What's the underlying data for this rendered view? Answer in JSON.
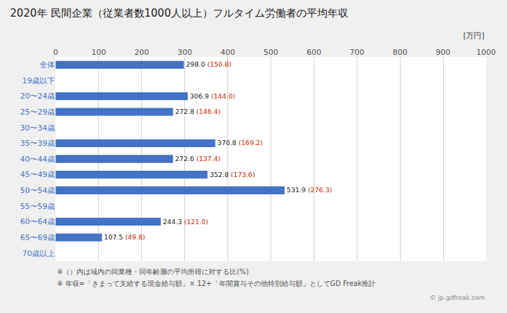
{
  "chart_data": {
    "type": "bar",
    "orientation": "horizontal",
    "title": "2020年 民間企業（従業者数1000人以上）フルタイム労働者の平均年収",
    "xlabel": "[万円]",
    "categories": [
      "全体",
      "19歳以下",
      "20〜24歳",
      "25〜29歳",
      "30〜34歳",
      "35〜39歳",
      "40〜44歳",
      "45〜49歳",
      "50〜54歳",
      "55〜59歳",
      "60〜64歳",
      "65〜69歳",
      "70歳以上"
    ],
    "values": [
      298.0,
      0,
      306.9,
      272.8,
      0,
      370.8,
      272.6,
      352.8,
      531.9,
      0,
      244.3,
      107.5,
      0
    ],
    "value_labels": [
      "298.0",
      null,
      "306.9",
      "272.8",
      null,
      "370.8",
      "272.6",
      "352.8",
      "531.9",
      null,
      "244.3",
      "107.5",
      null
    ],
    "annotations": [
      " (150.8)",
      null,
      " (144.0)",
      " (146.4)",
      null,
      " (169.2)",
      " (137.4)",
      " (173.6)",
      " (276.3)",
      null,
      " (121.0)",
      " (49.8)",
      null
    ],
    "data_labels": true,
    "color": "#4472C4",
    "xlim": [
      0,
      1000
    ],
    "xticks": [
      0,
      100,
      200,
      300,
      400,
      500,
      600,
      700,
      800,
      900,
      1000
    ],
    "grid": true,
    "footnotes": [
      "※（）内は域内の同業種・同年齢層の平均所得に対する比(%)",
      "※ 年収=「きまって支給する現金給与額」× 12+「年間賞与その他特別給与額」としてGD Freak推計"
    ],
    "watermark": "© jp.gdfreak.com"
  }
}
